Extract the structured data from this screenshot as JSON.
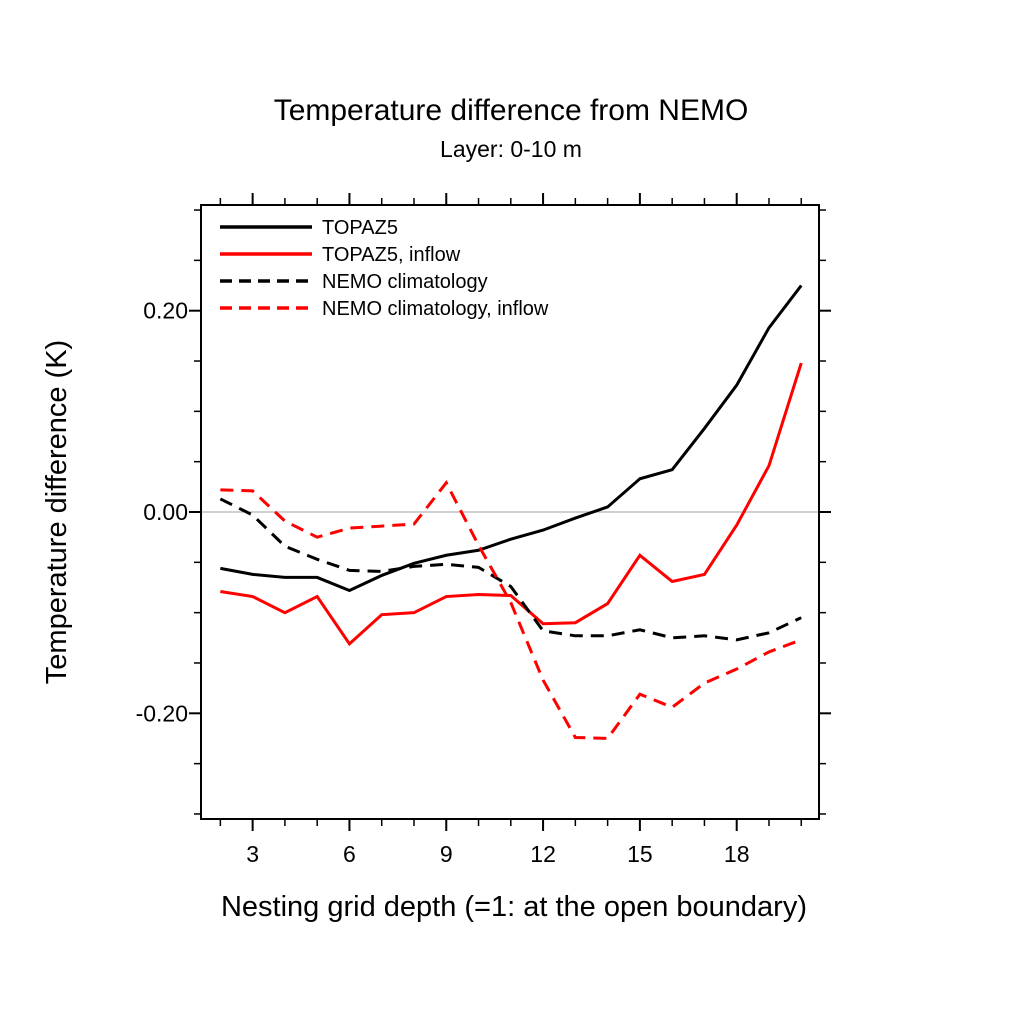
{
  "figure": {
    "type": "line-chart",
    "background": "#ffffff"
  },
  "chart_data": {
    "type": "line",
    "title": "Temperature difference from NEMO",
    "subtitle": "Layer: 0-10 m",
    "xlabel": "Nesting grid depth (=1: at the open boundary)",
    "ylabel": "Temperature difference (K)",
    "xlim": [
      1.4,
      20.55
    ],
    "ylim": [
      -0.305,
      0.305
    ],
    "x_major_ticks": [
      3,
      6,
      9,
      12,
      15,
      18
    ],
    "x_minor_ticks": [
      2,
      4,
      5,
      7,
      8,
      10,
      11,
      13,
      14,
      16,
      17,
      19,
      20
    ],
    "y_major_ticks": [
      0.2,
      0.0,
      -0.2
    ],
    "y_minor_ticks": [
      0.3,
      0.25,
      0.15,
      0.1,
      0.05,
      -0.05,
      -0.1,
      -0.15,
      -0.25,
      -0.3
    ],
    "grid": "zero-line-only",
    "zero_line_color": "#b3b3b3",
    "axis_color": "#000000",
    "legend_position": "top-left-inside",
    "x": [
      2,
      3,
      4,
      5,
      6,
      7,
      8,
      9,
      10,
      11,
      12,
      13,
      14,
      15,
      16,
      17,
      18,
      19,
      20
    ],
    "series": [
      {
        "name": "TOPAZ5",
        "color": "#000000",
        "style": "solid",
        "values": [
          -0.056,
          -0.062,
          -0.065,
          -0.065,
          -0.078,
          -0.063,
          -0.051,
          -0.043,
          -0.038,
          -0.027,
          -0.018,
          -0.006,
          0.005,
          0.033,
          0.042,
          0.083,
          0.126,
          0.183,
          0.225
        ]
      },
      {
        "name": "TOPAZ5, inflow",
        "color": "#ff0000",
        "style": "solid",
        "values": [
          -0.079,
          -0.084,
          -0.1,
          -0.084,
          -0.131,
          -0.102,
          -0.1,
          -0.084,
          -0.082,
          -0.083,
          -0.111,
          -0.11,
          -0.091,
          -0.043,
          -0.069,
          -0.062,
          -0.013,
          0.046,
          0.148
        ]
      },
      {
        "name": "NEMO climatology",
        "color": "#000000",
        "style": "dashed",
        "values": [
          0.013,
          -0.003,
          -0.034,
          -0.047,
          -0.058,
          -0.059,
          -0.054,
          -0.052,
          -0.055,
          -0.074,
          -0.118,
          -0.123,
          -0.123,
          -0.117,
          -0.125,
          -0.123,
          -0.127,
          -0.12,
          -0.105
        ]
      },
      {
        "name": "NEMO climatology, inflow",
        "color": "#ff0000",
        "style": "dashed",
        "values": [
          0.022,
          0.021,
          -0.009,
          -0.025,
          -0.016,
          -0.014,
          -0.012,
          0.029,
          -0.033,
          -0.09,
          -0.167,
          -0.224,
          -0.225,
          -0.181,
          -0.194,
          -0.17,
          -0.156,
          -0.139,
          -0.127
        ]
      }
    ]
  }
}
